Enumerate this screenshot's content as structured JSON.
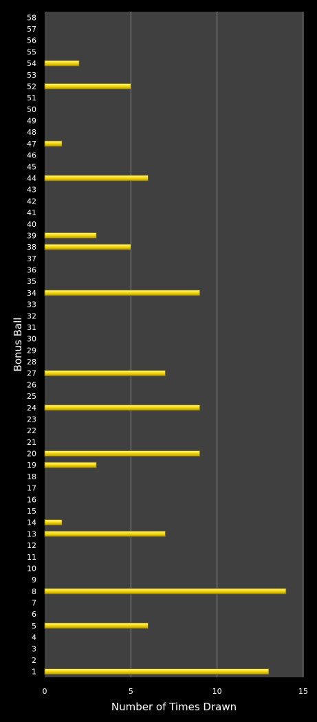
{
  "chart_data": {
    "type": "bar",
    "orientation": "horizontal",
    "xlabel": "Number of Times Drawn",
    "ylabel": "Bonus Ball",
    "xlim": [
      0,
      15
    ],
    "x_ticks": [
      0,
      5,
      10,
      15
    ],
    "categories": [
      "1",
      "2",
      "3",
      "4",
      "5",
      "6",
      "7",
      "8",
      "9",
      "10",
      "11",
      "12",
      "13",
      "14",
      "15",
      "16",
      "17",
      "18",
      "19",
      "20",
      "21",
      "22",
      "23",
      "24",
      "25",
      "26",
      "27",
      "28",
      "29",
      "30",
      "31",
      "32",
      "33",
      "34",
      "35",
      "36",
      "37",
      "38",
      "39",
      "40",
      "41",
      "42",
      "43",
      "44",
      "45",
      "46",
      "47",
      "48",
      "49",
      "50",
      "51",
      "52",
      "53",
      "54",
      "55",
      "56",
      "57",
      "58"
    ],
    "values": [
      13,
      0,
      0,
      0,
      6,
      0,
      0,
      14,
      0,
      0,
      0,
      0,
      7,
      1,
      0,
      0,
      0,
      0,
      3,
      9,
      0,
      0,
      0,
      9,
      0,
      0,
      7,
      0,
      0,
      0,
      0,
      0,
      0,
      9,
      0,
      0,
      0,
      5,
      3,
      0,
      0,
      0,
      0,
      6,
      0,
      0,
      1,
      0,
      0,
      0,
      0,
      5,
      0,
      2,
      0,
      0,
      0,
      0
    ],
    "grid": "vertical",
    "colors": {
      "background": "#000000",
      "plot_area": "#404040",
      "bar_fill": "#f5d800",
      "bar_edge": "#7a6a00",
      "gridline": "#8a8a8a",
      "text": "#ffffff"
    }
  }
}
